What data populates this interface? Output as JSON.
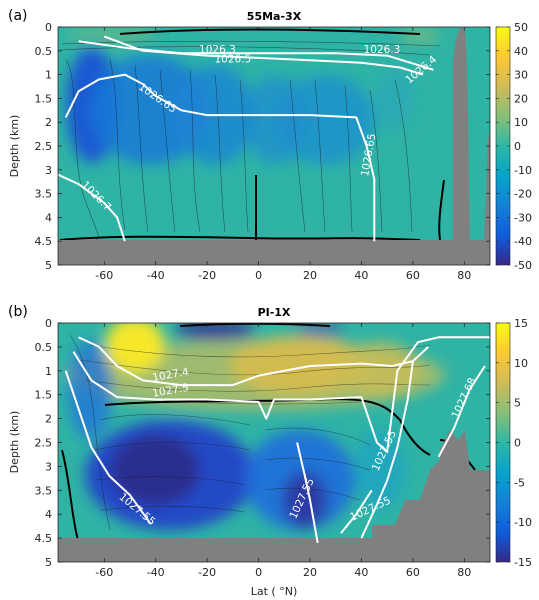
{
  "chart_data": [
    {
      "panel_label": "(a)",
      "title": "55Ma-3X",
      "type": "heatmap",
      "ylabel": "Depth (km)",
      "xlim": [
        -78,
        90
      ],
      "ylim": [
        5,
        0
      ],
      "x_ticks": [
        "-60",
        "-40",
        "-20",
        "0",
        "20",
        "40",
        "60",
        "80"
      ],
      "x_tick_values": [
        -60,
        -40,
        -20,
        0,
        20,
        40,
        60,
        80
      ],
      "y_ticks": [
        "0",
        "0.5",
        "1",
        "1.5",
        "2",
        "2.5",
        "3",
        "3.5",
        "4",
        "4.5",
        "5"
      ],
      "y_tick_values": [
        0,
        0.5,
        1,
        1.5,
        2,
        2.5,
        3,
        3.5,
        4,
        4.5,
        5
      ],
      "colorbar": {
        "min": -50,
        "max": 50,
        "ticks": [
          "50",
          "40",
          "30",
          "20",
          "10",
          "0",
          "-10",
          "-20",
          "-30",
          "-40",
          "-50"
        ]
      },
      "density_contours": [
        {
          "label": "1026.3",
          "points": [
            [
              -70,
              0.3
            ],
            [
              -50,
              0.45
            ],
            [
              -30,
              0.55
            ],
            [
              -10,
              0.55
            ],
            [
              10,
              0.55
            ],
            [
              30,
              0.55
            ],
            [
              50,
              0.6
            ],
            [
              68,
              0.9
            ]
          ]
        },
        {
          "label": "1026.5",
          "points": [
            [
              -60,
              0.2
            ],
            [
              -45,
              0.5
            ],
            [
              -20,
              0.6
            ],
            [
              0,
              0.65
            ],
            [
              20,
              0.7
            ],
            [
              40,
              0.75
            ],
            [
              55,
              0.85
            ],
            [
              64,
              1.0
            ]
          ]
        },
        {
          "label": "1026.65",
          "points": [
            [
              -75,
              1.9
            ],
            [
              -70,
              1.35
            ],
            [
              -62,
              1.1
            ],
            [
              -52,
              1.0
            ],
            [
              -45,
              1.2
            ],
            [
              -40,
              1.45
            ],
            [
              -30,
              1.75
            ],
            [
              -20,
              1.85
            ],
            [
              0,
              1.85
            ],
            [
              20,
              1.85
            ],
            [
              38,
              1.9
            ],
            [
              42,
              2.5
            ],
            [
              45,
              3.2
            ],
            [
              45,
              4.5
            ]
          ]
        },
        {
          "label": "1026.7",
          "points": [
            [
              -78,
              3.1
            ],
            [
              -70,
              3.3
            ],
            [
              -60,
              3.7
            ],
            [
              -55,
              4.0
            ],
            [
              -52,
              4.5
            ]
          ]
        }
      ],
      "contour_labels": [
        {
          "text": "1026.3",
          "x": -16,
          "y": 0.55,
          "rot": 0
        },
        {
          "text": "1026.5",
          "x": -10,
          "y": 0.75,
          "rot": 0
        },
        {
          "text": "1026.3",
          "x": 48,
          "y": 0.55,
          "rot": 0
        },
        {
          "text": "1026.4",
          "x": 64,
          "y": 0.95,
          "rot": -40
        },
        {
          "text": "1026.65",
          "x": -40,
          "y": 1.55,
          "rot": 35
        },
        {
          "text": "1026.65",
          "x": 44,
          "y": 2.7,
          "rot": -80
        },
        {
          "text": "1026.7",
          "x": -64,
          "y": 3.6,
          "rot": 45
        }
      ]
    },
    {
      "panel_label": "(b)",
      "title": "PI-1X",
      "type": "heatmap",
      "xlabel": "Lat ( °N)",
      "ylabel": "Depth (km)",
      "xlim": [
        -78,
        90
      ],
      "ylim": [
        5,
        0
      ],
      "x_ticks": [
        "-60",
        "-40",
        "-20",
        "0",
        "20",
        "40",
        "60",
        "80"
      ],
      "x_tick_values": [
        -60,
        -40,
        -20,
        0,
        20,
        40,
        60,
        80
      ],
      "y_ticks": [
        "0",
        "0.5",
        "1",
        "1.5",
        "2",
        "2.5",
        "3",
        "3.5",
        "4",
        "4.5",
        "5"
      ],
      "y_tick_values": [
        0,
        0.5,
        1,
        1.5,
        2,
        2.5,
        3,
        3.5,
        4,
        4.5,
        5
      ],
      "colorbar": {
        "min": -15,
        "max": 15,
        "ticks": [
          "15",
          "10",
          "5",
          "0",
          "-5",
          "-10",
          "-15"
        ]
      },
      "density_contours": [
        {
          "label": "1027.4",
          "points": [
            [
              -70,
              0.3
            ],
            [
              -62,
              0.5
            ],
            [
              -55,
              0.9
            ],
            [
              -45,
              1.2
            ],
            [
              -30,
              1.3
            ],
            [
              -10,
              1.3
            ],
            [
              0,
              1.1
            ],
            [
              20,
              0.9
            ],
            [
              40,
              0.85
            ],
            [
              52,
              0.9
            ],
            [
              60,
              0.8
            ],
            [
              66,
              0.5
            ]
          ]
        },
        {
          "label": "1027.5",
          "points": [
            [
              -72,
              0.6
            ],
            [
              -65,
              1.2
            ],
            [
              -55,
              1.55
            ],
            [
              -40,
              1.6
            ],
            [
              -20,
              1.6
            ],
            [
              0,
              1.65
            ],
            [
              3,
              2.0
            ],
            [
              6,
              1.6
            ],
            [
              20,
              1.6
            ],
            [
              40,
              1.55
            ],
            [
              46,
              2.5
            ],
            [
              50,
              2.7
            ],
            [
              54,
              1.0
            ],
            [
              62,
              0.4
            ],
            [
              70,
              0.3
            ],
            [
              90,
              0.3
            ]
          ]
        },
        {
          "label": "1027.55",
          "points": [
            [
              -75,
              1.0
            ],
            [
              -70,
              1.8
            ],
            [
              -65,
              2.6
            ],
            [
              -58,
              3.2
            ],
            [
              -50,
              3.6
            ],
            [
              -42,
              4.2
            ]
          ]
        },
        {
          "label": "1027.55",
          "points": [
            [
              15,
              2.5
            ],
            [
              18,
              3.2
            ],
            [
              20,
              3.7
            ],
            [
              22,
              4.3
            ],
            [
              23,
              4.6
            ]
          ]
        },
        {
          "label": "1027.55",
          "points": [
            [
              44,
              3.5
            ],
            [
              38,
              4.0
            ],
            [
              32,
              4.4
            ]
          ]
        },
        {
          "label": "1027.65",
          "points": [
            [
              40,
              4.5
            ],
            [
              46,
              3.8
            ],
            [
              50,
              3.3
            ],
            [
              54,
              2.6
            ],
            [
              58,
              1.6
            ],
            [
              60,
              0.8
            ]
          ]
        },
        {
          "label": "1027.68",
          "points": [
            [
              70,
              2.8
            ],
            [
              76,
              2.2
            ],
            [
              82,
              1.4
            ],
            [
              88,
              0.9
            ]
          ]
        }
      ],
      "contour_labels": [
        {
          "text": "1027.4",
          "x": -34,
          "y": 1.15,
          "rot": -10
        },
        {
          "text": "1027.5",
          "x": -34,
          "y": 1.48,
          "rot": -10
        },
        {
          "text": "1027.55",
          "x": -48,
          "y": 3.95,
          "rot": 40
        },
        {
          "text": "1027.55",
          "x": 18,
          "y": 3.7,
          "rot": -65
        },
        {
          "text": "1027.55",
          "x": 44,
          "y": 3.95,
          "rot": -25
        },
        {
          "text": "1027.55",
          "x": 50,
          "y": 2.7,
          "rot": -65
        },
        {
          "text": "1027.68",
          "x": 81,
          "y": 1.6,
          "rot": -65
        }
      ]
    }
  ]
}
